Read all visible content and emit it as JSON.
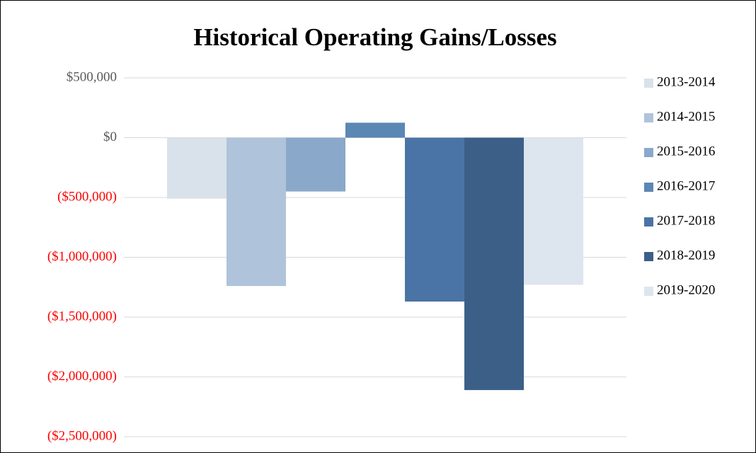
{
  "chart_data": {
    "type": "bar",
    "title": "Historical Operating Gains/Losses",
    "series": [
      {
        "name": "2013-2014",
        "color": "#d9e1eb",
        "values": [
          -510000
        ]
      },
      {
        "name": "2014-2015",
        "color": "#afc3da",
        "values": [
          -1240000
        ]
      },
      {
        "name": "2015-2016",
        "color": "#8aa8c9",
        "values": [
          -450000
        ]
      },
      {
        "name": "2016-2017",
        "color": "#5b87b4",
        "values": [
          125000
        ]
      },
      {
        "name": "2017-2018",
        "color": "#4a74a6",
        "values": [
          -1370000
        ]
      },
      {
        "name": "2018-2019",
        "color": "#3c5f88",
        "values": [
          -2110000
        ]
      },
      {
        "name": "2019-2020",
        "color": "#dde5ef",
        "values": [
          -1230000
        ]
      }
    ],
    "ylim": [
      -2500000,
      500000
    ],
    "yticks": [
      {
        "value": 500000,
        "label": "$500,000"
      },
      {
        "value": 0,
        "label": "$0"
      },
      {
        "value": -500000,
        "label": "($500,000)"
      },
      {
        "value": -1000000,
        "label": "($1,000,000)"
      },
      {
        "value": -1500000,
        "label": "($1,500,000)"
      },
      {
        "value": -2000000,
        "label": "($2,000,000)"
      },
      {
        "value": -2500000,
        "label": "($2,500,000)"
      }
    ],
    "grid": true,
    "legend": "right",
    "negative_tick_color": "#ff0000"
  }
}
